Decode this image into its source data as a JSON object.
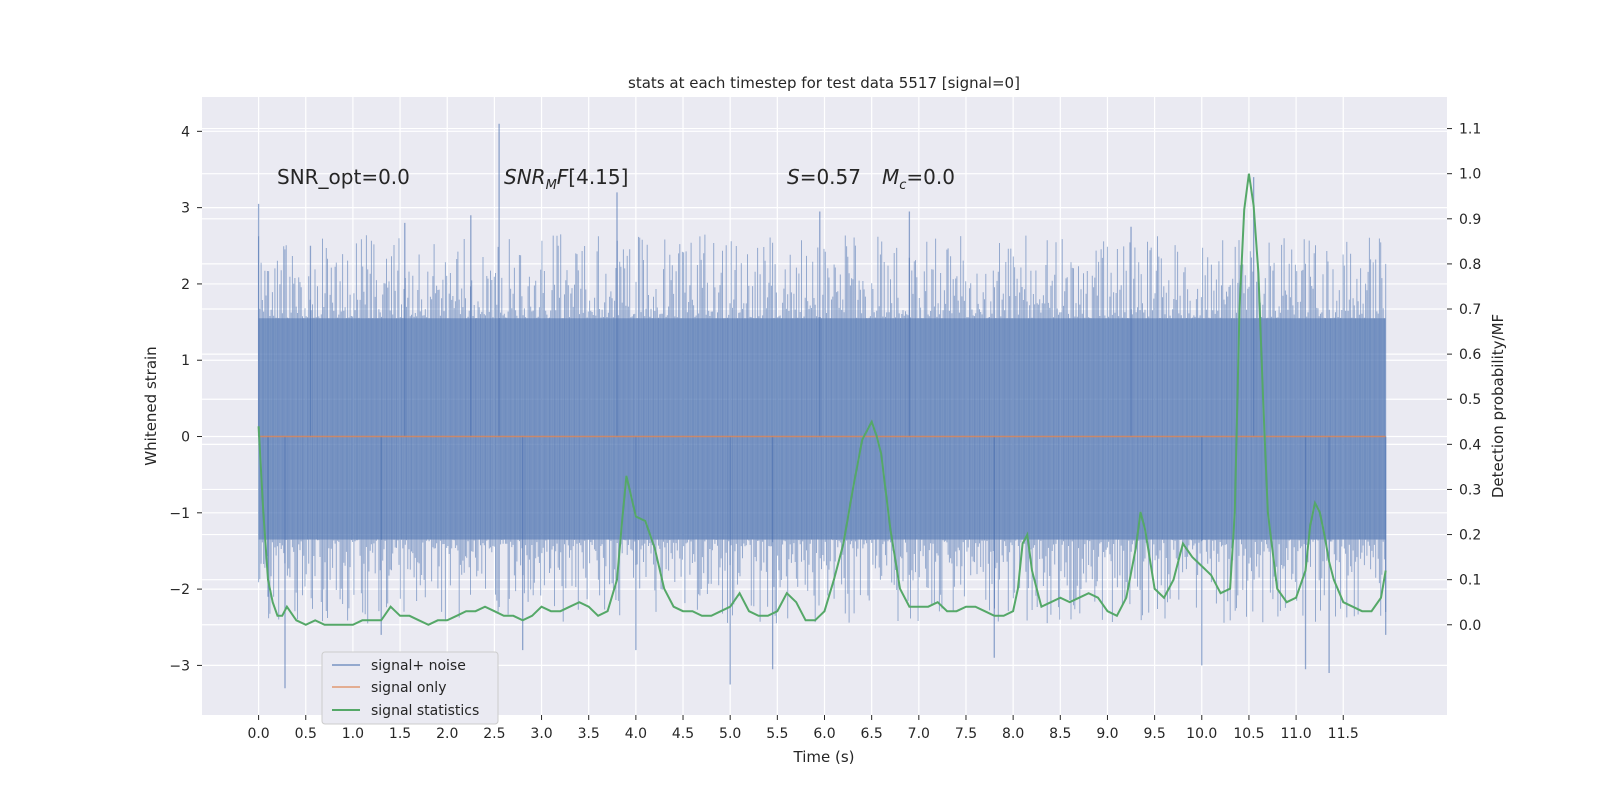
{
  "chart_data": {
    "type": "line",
    "title": "stats at each timestep for test data 5517 [signal=0]",
    "xlabel": "Time (s)",
    "ylabel_left": "Whitened strain",
    "ylabel_right": "Detection probability/MF",
    "xlim": [
      -0.6,
      12.6
    ],
    "ylim_left": [
      -3.65,
      4.45
    ],
    "ylim_right": [
      -0.2,
      1.17
    ],
    "x_ticks": [
      "0.0",
      "0.5",
      "1.0",
      "1.5",
      "2.0",
      "2.5",
      "3.0",
      "3.5",
      "4.0",
      "4.5",
      "5.0",
      "5.5",
      "6.0",
      "6.5",
      "7.0",
      "7.5",
      "8.0",
      "8.5",
      "9.0",
      "9.5",
      "10.0",
      "10.5",
      "11.0",
      "11.5"
    ],
    "y_ticks_left": [
      "4",
      "3",
      "2",
      "1",
      "0",
      "−1",
      "−2",
      "−3"
    ],
    "y_ticks_right": [
      "1.1",
      "1.0",
      "0.9",
      "0.8",
      "0.7",
      "0.6",
      "0.5",
      "0.4",
      "0.3",
      "0.2",
      "0.1",
      "0.0"
    ],
    "grid": true,
    "legend_position": "lower-left",
    "annotations": {
      "snr_opt": "SNR_opt=0.0",
      "snr_mf": "[4.15]",
      "s_value": "=0.57",
      "mc_value": "=0.0"
    },
    "series": [
      {
        "name": "signal+ noise",
        "color": "#4c72b0",
        "axis": "left",
        "noise_band": [
          -1.35,
          1.55
        ],
        "spikes": [
          {
            "x": 0.0,
            "y": 3.05
          },
          {
            "x": 0.1,
            "y": -2.1
          },
          {
            "x": 0.28,
            "y": -3.3
          },
          {
            "x": 0.55,
            "y": 2.5
          },
          {
            "x": 1.3,
            "y": -2.6
          },
          {
            "x": 1.55,
            "y": 2.8
          },
          {
            "x": 2.25,
            "y": 2.9
          },
          {
            "x": 2.55,
            "y": 4.1
          },
          {
            "x": 2.8,
            "y": -2.8
          },
          {
            "x": 3.8,
            "y": 3.2
          },
          {
            "x": 4.0,
            "y": -2.8
          },
          {
            "x": 5.0,
            "y": -3.25
          },
          {
            "x": 5.45,
            "y": -3.05
          },
          {
            "x": 5.95,
            "y": 2.95
          },
          {
            "x": 6.9,
            "y": 2.95
          },
          {
            "x": 7.8,
            "y": -2.9
          },
          {
            "x": 9.25,
            "y": 2.75
          },
          {
            "x": 10.0,
            "y": -3.0
          },
          {
            "x": 10.55,
            "y": 3.4
          },
          {
            "x": 11.1,
            "y": -3.05
          },
          {
            "x": 11.35,
            "y": -3.1
          },
          {
            "x": 11.95,
            "y": -2.6
          }
        ]
      },
      {
        "name": "signal only",
        "color": "#dd8452",
        "axis": "left",
        "x": [
          0.0,
          11.95
        ],
        "y": [
          0.0,
          0.0
        ]
      },
      {
        "name": "signal statistics",
        "color": "#55a868",
        "axis": "right",
        "x": [
          0.0,
          0.05,
          0.1,
          0.15,
          0.2,
          0.25,
          0.3,
          0.4,
          0.5,
          0.6,
          0.7,
          0.8,
          0.9,
          1.0,
          1.1,
          1.2,
          1.3,
          1.4,
          1.5,
          1.6,
          1.7,
          1.8,
          1.9,
          2.0,
          2.1,
          2.2,
          2.3,
          2.4,
          2.5,
          2.6,
          2.7,
          2.8,
          2.9,
          3.0,
          3.1,
          3.2,
          3.3,
          3.4,
          3.5,
          3.6,
          3.7,
          3.8,
          3.85,
          3.9,
          4.0,
          4.1,
          4.2,
          4.3,
          4.4,
          4.5,
          4.6,
          4.7,
          4.8,
          4.9,
          5.0,
          5.1,
          5.2,
          5.3,
          5.4,
          5.5,
          5.6,
          5.7,
          5.8,
          5.9,
          6.0,
          6.1,
          6.2,
          6.3,
          6.4,
          6.5,
          6.55,
          6.6,
          6.7,
          6.8,
          6.9,
          7.0,
          7.1,
          7.2,
          7.3,
          7.4,
          7.5,
          7.6,
          7.7,
          7.8,
          7.9,
          8.0,
          8.05,
          8.1,
          8.15,
          8.2,
          8.3,
          8.4,
          8.5,
          8.6,
          8.7,
          8.8,
          8.9,
          9.0,
          9.1,
          9.2,
          9.3,
          9.35,
          9.4,
          9.5,
          9.6,
          9.7,
          9.8,
          9.9,
          10.0,
          10.1,
          10.2,
          10.3,
          10.35,
          10.4,
          10.45,
          10.5,
          10.55,
          10.6,
          10.65,
          10.7,
          10.8,
          10.9,
          11.0,
          11.1,
          11.15,
          11.2,
          11.25,
          11.3,
          11.35,
          11.4,
          11.5,
          11.6,
          11.7,
          11.8,
          11.9,
          11.95
        ],
        "y": [
          0.44,
          0.25,
          0.1,
          0.05,
          0.02,
          0.02,
          0.04,
          0.01,
          0.0,
          0.01,
          0.0,
          0.0,
          0.0,
          0.0,
          0.01,
          0.01,
          0.01,
          0.04,
          0.02,
          0.02,
          0.01,
          0.0,
          0.01,
          0.01,
          0.02,
          0.03,
          0.03,
          0.04,
          0.03,
          0.02,
          0.02,
          0.01,
          0.02,
          0.04,
          0.03,
          0.03,
          0.04,
          0.05,
          0.04,
          0.02,
          0.03,
          0.1,
          0.22,
          0.33,
          0.24,
          0.23,
          0.17,
          0.08,
          0.04,
          0.03,
          0.03,
          0.02,
          0.02,
          0.03,
          0.04,
          0.07,
          0.03,
          0.02,
          0.02,
          0.03,
          0.07,
          0.05,
          0.01,
          0.01,
          0.03,
          0.1,
          0.18,
          0.3,
          0.41,
          0.45,
          0.42,
          0.38,
          0.21,
          0.08,
          0.04,
          0.04,
          0.04,
          0.05,
          0.03,
          0.03,
          0.04,
          0.04,
          0.03,
          0.02,
          0.02,
          0.03,
          0.08,
          0.18,
          0.2,
          0.12,
          0.04,
          0.05,
          0.06,
          0.05,
          0.06,
          0.07,
          0.06,
          0.03,
          0.02,
          0.06,
          0.17,
          0.25,
          0.21,
          0.08,
          0.06,
          0.1,
          0.18,
          0.15,
          0.13,
          0.11,
          0.07,
          0.08,
          0.25,
          0.7,
          0.92,
          1.0,
          0.93,
          0.78,
          0.5,
          0.25,
          0.08,
          0.05,
          0.06,
          0.12,
          0.22,
          0.27,
          0.25,
          0.2,
          0.14,
          0.1,
          0.05,
          0.04,
          0.03,
          0.03,
          0.06,
          0.12
        ]
      }
    ]
  }
}
